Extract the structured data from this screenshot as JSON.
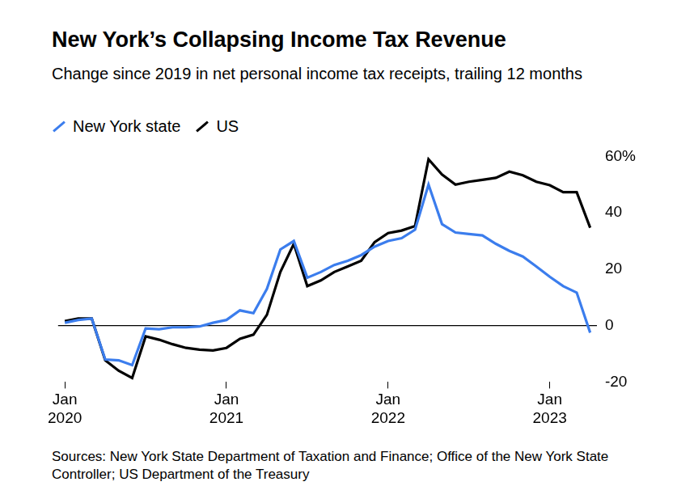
{
  "chart_data": {
    "type": "line",
    "title": "New York’s Collapsing Income Tax Revenue",
    "subtitle": "Change since 2019 in net personal income tax receipts, trailing 12 months",
    "source": "Sources: New York State Department of Taxation and Finance; Office of the New York State Controller; US Department of the Treasury",
    "legend": "top-left",
    "categories": [
      "Jan 2020",
      null,
      null,
      null,
      null,
      null,
      null,
      null,
      null,
      null,
      null,
      null,
      "Jan 2021",
      null,
      null,
      null,
      null,
      null,
      null,
      null,
      null,
      null,
      null,
      null,
      "Jan 2022",
      null,
      null,
      null,
      null,
      null,
      null,
      null,
      null,
      null,
      null,
      null,
      "Jan 2023",
      null,
      null,
      null
    ],
    "series": [
      {
        "name": "New York state",
        "color": "#3b7ded",
        "values": [
          1,
          2,
          2.5,
          -12,
          -12.3,
          -14,
          -1,
          -1.3,
          -0.6,
          -0.6,
          -0.3,
          1,
          2,
          5.4,
          4.4,
          13,
          27,
          30,
          17,
          19,
          21.5,
          23,
          25,
          28,
          30,
          31,
          34,
          50,
          36,
          33,
          32.5,
          32,
          29,
          26.5,
          24.5,
          21,
          17.3,
          14,
          11.7,
          -2.5
        ]
      },
      {
        "name": "US",
        "color": "#000000",
        "values": [
          1.6,
          2.5,
          2.5,
          -12.3,
          -16,
          -18.6,
          -3.8,
          -5,
          -6.6,
          -7.9,
          -8.5,
          -8.8,
          -7.9,
          -4.7,
          -3.2,
          3.8,
          19,
          29,
          14,
          16,
          19,
          21,
          23,
          29.6,
          32.8,
          33.7,
          35.3,
          59,
          53.6,
          50,
          51,
          51.7,
          52.4,
          54.6,
          53.3,
          51,
          49.8,
          47.3,
          47.3,
          34.7
        ]
      }
    ],
    "ylim": [
      -20,
      60
    ],
    "yticks": [
      -20,
      0,
      20,
      40,
      {
        "value": 60,
        "label": "60%"
      }
    ]
  }
}
